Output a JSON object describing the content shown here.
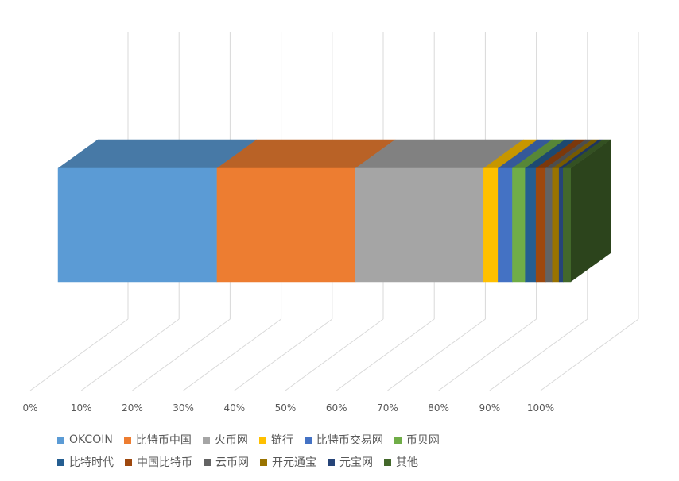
{
  "chart_data": {
    "type": "bar",
    "orientation": "horizontal-stacked-100",
    "three_d": true,
    "x_ticks": [
      "0%",
      "10%",
      "20%",
      "30%",
      "40%",
      "50%",
      "60%",
      "70%",
      "80%",
      "90%",
      "100%"
    ],
    "xlim": [
      0,
      100
    ],
    "grid": true,
    "legend_position": "bottom",
    "series": [
      {
        "name": "OKCOIN",
        "value": 31.0,
        "color": "#5b9bd5"
      },
      {
        "name": "比特币中国",
        "value": 27.0,
        "color": "#ed7d31"
      },
      {
        "name": "火币网",
        "value": 25.0,
        "color": "#a5a5a5"
      },
      {
        "name": "链行",
        "value": 2.8,
        "color": "#ffc000"
      },
      {
        "name": "比特币交易网",
        "value": 2.8,
        "color": "#4472c4"
      },
      {
        "name": "币贝网",
        "value": 2.5,
        "color": "#70ad47"
      },
      {
        "name": "比特时代",
        "value": 2.1,
        "color": "#255e91"
      },
      {
        "name": "中国比特币",
        "value": 1.9,
        "color": "#9e480e"
      },
      {
        "name": "云币网",
        "value": 1.3,
        "color": "#636363"
      },
      {
        "name": "开元通宝",
        "value": 1.3,
        "color": "#997300"
      },
      {
        "name": "元宝网",
        "value": 0.8,
        "color": "#264478"
      },
      {
        "name": "其他",
        "value": 1.5,
        "color": "#43682b"
      }
    ]
  }
}
